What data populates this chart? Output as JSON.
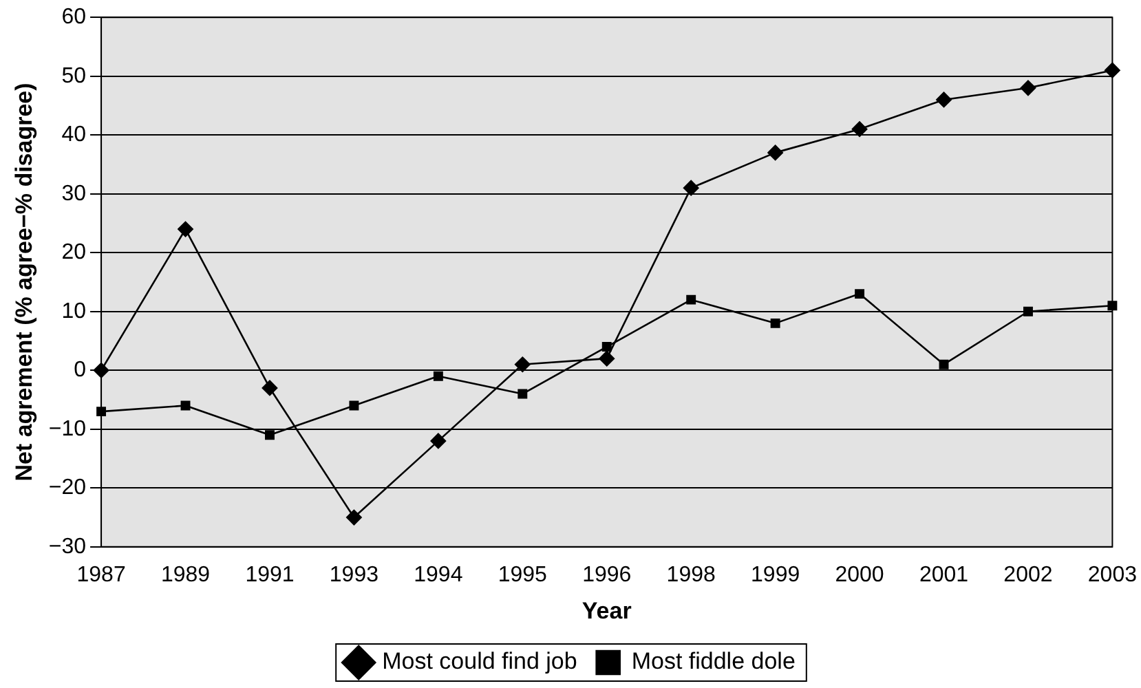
{
  "chart_data": {
    "type": "line",
    "xlabel": "Year",
    "ylabel": "Net agrement (% agree−% disagree)",
    "categories": [
      "1987",
      "1989",
      "1991",
      "1993",
      "1994",
      "1995",
      "1996",
      "1998",
      "1999",
      "2000",
      "2001",
      "2002",
      "2003"
    ],
    "series": [
      {
        "name": "Most could find job",
        "color": "#000000",
        "marker": "diamond",
        "values": [
          0,
          24,
          -3,
          -25,
          -12,
          1,
          2,
          31,
          37,
          41,
          46,
          48,
          51
        ]
      },
      {
        "name": "Most fiddle dole",
        "color": "#000000",
        "marker": "square",
        "values": [
          -7,
          -6,
          -11,
          -6,
          -1,
          -4,
          4,
          12,
          8,
          13,
          1,
          10,
          11
        ]
      }
    ],
    "ylim": [
      -30,
      60
    ],
    "yticks": [
      -30,
      -20,
      -10,
      0,
      10,
      20,
      30,
      40,
      50,
      60
    ],
    "grid": "y",
    "legend": "bottom",
    "line_style": "solid"
  }
}
